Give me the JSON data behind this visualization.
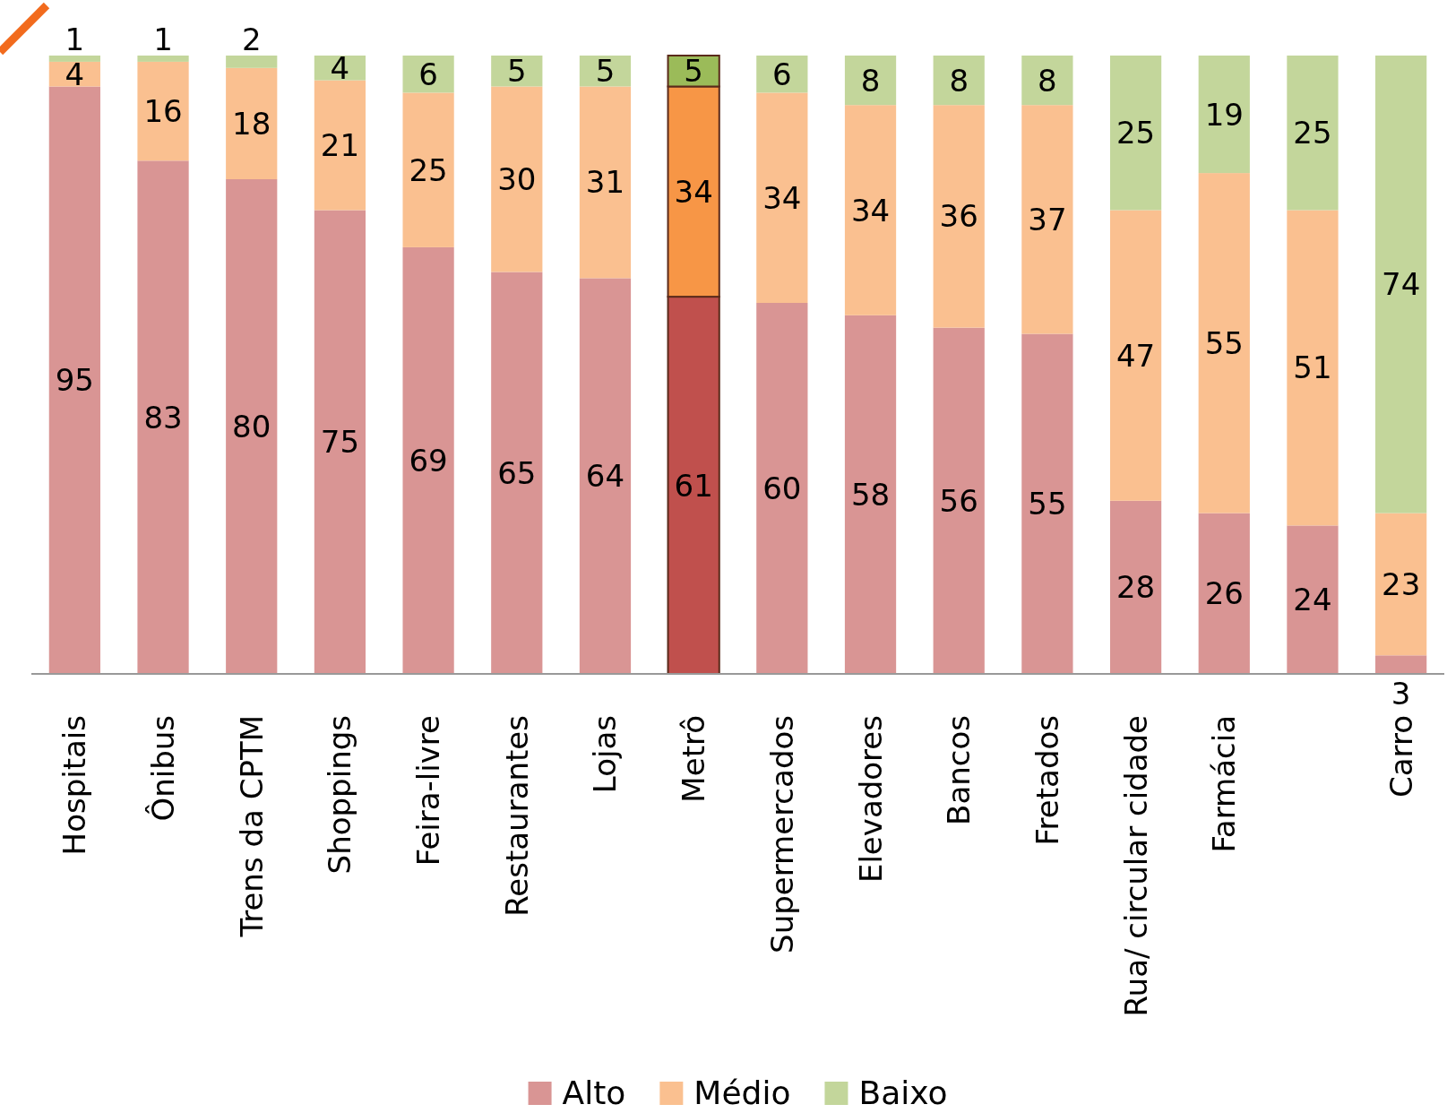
{
  "chart_data": {
    "type": "bar",
    "stacked": true,
    "data_labels": true,
    "legend": "bottom",
    "ylim": [
      0,
      100
    ],
    "categories": [
      "Hospitais",
      "Ônibus",
      "Trens da CPTM",
      "Shoppings",
      "Feira-livre",
      "Restaurantes",
      "Lojas",
      "Metrô",
      "Supermercados",
      "Elevadores",
      "Bancos",
      "Fretados",
      "Rua/ circular cidade",
      "Farmácia",
      null,
      "Carro"
    ],
    "series": [
      {
        "name": "Alto",
        "color": "#d99594",
        "colors": [
          "#d99594",
          "#d99594",
          "#d99594",
          "#d99594",
          "#d99594",
          "#d99594",
          "#d99594",
          "#c0504d",
          "#d99594",
          "#d99594",
          "#d99594",
          "#d99594",
          "#d99594",
          "#d99594",
          "#d99594",
          "#d99594"
        ],
        "values": [
          95,
          83,
          80,
          75,
          69,
          65,
          64,
          61,
          60,
          58,
          56,
          55,
          28,
          26,
          24,
          3
        ]
      },
      {
        "name": "Médio",
        "color": "#fac090",
        "colors": [
          "#fac090",
          "#fac090",
          "#fac090",
          "#fac090",
          "#fac090",
          "#fac090",
          "#fac090",
          "#f79646",
          "#fac090",
          "#fac090",
          "#fac090",
          "#fac090",
          "#fac090",
          "#fac090",
          "#fac090",
          "#fac090"
        ],
        "values": [
          4,
          16,
          18,
          21,
          25,
          30,
          31,
          34,
          34,
          34,
          36,
          37,
          47,
          55,
          51,
          23
        ]
      },
      {
        "name": "Baixo",
        "color": "#c3d69b",
        "colors": [
          "#c3d69b",
          "#c3d69b",
          "#c3d69b",
          "#c3d69b",
          "#c3d69b",
          "#c3d69b",
          "#c3d69b",
          "#9bbb59",
          "#c3d69b",
          "#c3d69b",
          "#c3d69b",
          "#c3d69b",
          "#c3d69b",
          "#c3d69b",
          "#c3d69b",
          "#c3d69b"
        ],
        "values": [
          1,
          1,
          2,
          4,
          6,
          5,
          5,
          5,
          6,
          8,
          8,
          8,
          25,
          19,
          25,
          74
        ]
      }
    ]
  }
}
